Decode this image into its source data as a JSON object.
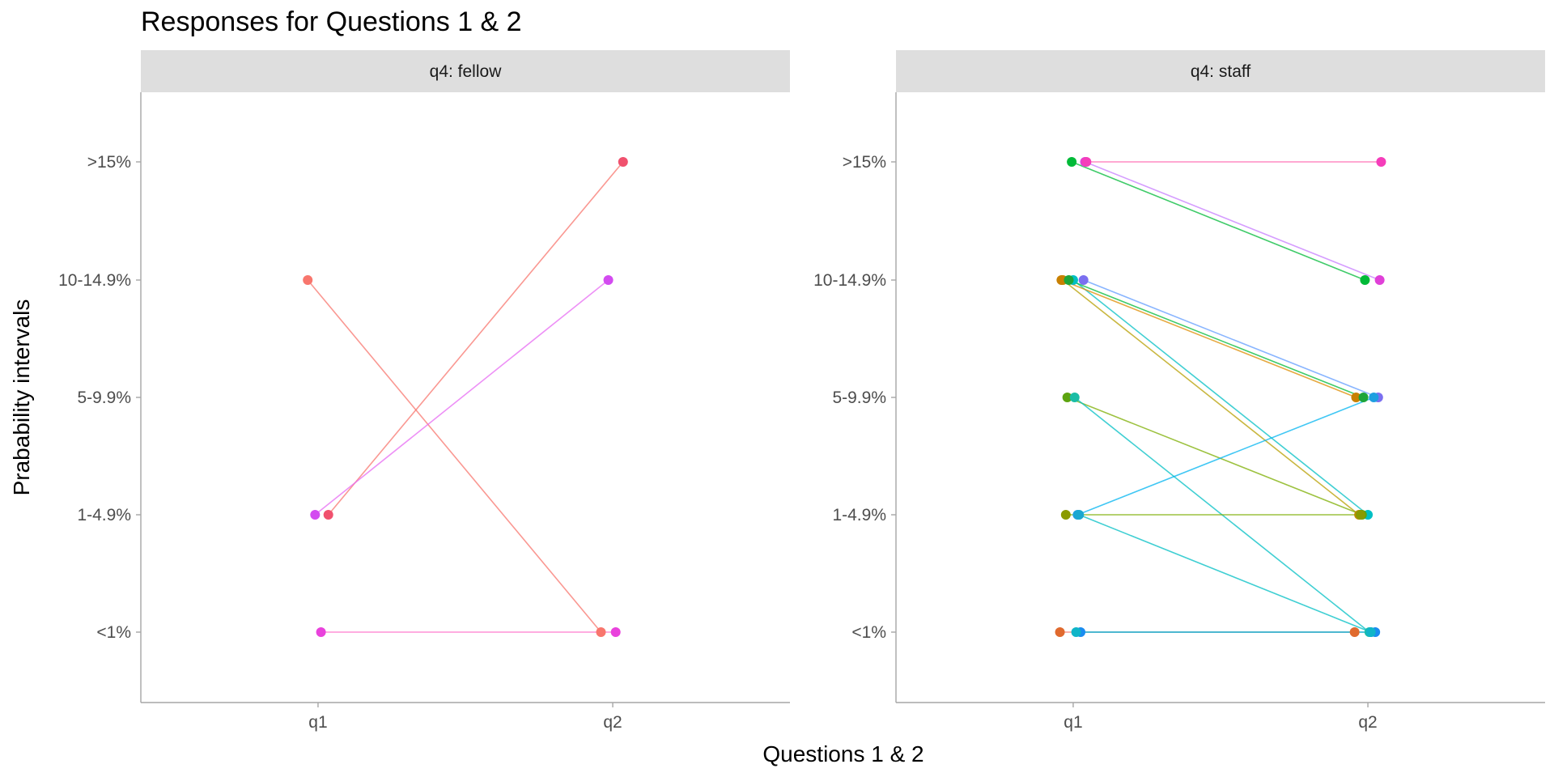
{
  "chart_data": {
    "type": "line",
    "title": "Responses for Questions 1 & 2",
    "xlabel": "Questions 1 & 2",
    "ylabel": "Prabability intervals",
    "x_categories": [
      "q1",
      "q2"
    ],
    "y_categories": [
      "<1%",
      "1-4.9%",
      "5-9.9%",
      "10-14.9%",
      ">15%"
    ],
    "grid": false,
    "legend": "none",
    "panels": [
      {
        "strip": "q4: fellow",
        "series": [
          {
            "color": "#F8766D",
            "values": [
              "10-14.9%",
              "<1%"
            ],
            "jitter": [
              -0.07,
              -0.08
            ]
          },
          {
            "color": "#F8766D",
            "values": [
              "1-4.9%",
              ">15%"
            ],
            "jitter": [
              0.07,
              0.07
            ],
            "point_color": "#F0516E"
          },
          {
            "color": "#E76BF3",
            "values": [
              "1-4.9%",
              "10-14.9%"
            ],
            "jitter": [
              -0.02,
              -0.03
            ],
            "point_color": "#D34BF0"
          },
          {
            "color": "#FF6BC8",
            "values": [
              "<1%",
              "<1%"
            ],
            "jitter": [
              0.02,
              0.02
            ],
            "point_color": "#E942DC"
          }
        ]
      },
      {
        "strip": "q4: staff",
        "series": [
          {
            "color": "#00BA38",
            "values": [
              ">15%",
              "10-14.9%"
            ],
            "jitter": [
              -0.01,
              -0.02
            ]
          },
          {
            "color": "#C77CFF",
            "values": [
              ">15%",
              "10-14.9%"
            ],
            "jitter": [
              0.08,
              0.08
            ],
            "point_color": "#E040D8"
          },
          {
            "color": "#FF64B0",
            "values": [
              ">15%",
              ">15%"
            ],
            "jitter": [
              0.09,
              0.09
            ],
            "point_color": "#F53DBA"
          },
          {
            "color": "#00BFC4",
            "values": [
              "10-14.9%",
              "1-4.9%"
            ],
            "jitter": [
              0.0,
              0.0
            ]
          },
          {
            "color": "#B79F00",
            "values": [
              "10-14.9%",
              "1-4.9%"
            ],
            "jitter": [
              -0.07,
              -0.06
            ],
            "point_color": "#C08A00"
          },
          {
            "color": "#DE8C00",
            "values": [
              "10-14.9%",
              "5-9.9%"
            ],
            "jitter": [
              -0.08,
              -0.08
            ],
            "point_color": "#C88000"
          },
          {
            "color": "#00BA38",
            "values": [
              "10-14.9%",
              "5-9.9%"
            ],
            "jitter": [
              -0.03,
              -0.03
            ],
            "point_color": "#1DA53A"
          },
          {
            "color": "#619CFF",
            "values": [
              "10-14.9%",
              "5-9.9%"
            ],
            "jitter": [
              0.07,
              0.07
            ],
            "point_color": "#7B6FF0"
          },
          {
            "color": "#7CAE00",
            "values": [
              "5-9.9%",
              "1-4.9%"
            ],
            "jitter": [
              -0.04,
              -0.04
            ],
            "point_color": "#5DA410"
          },
          {
            "color": "#00BFC4",
            "values": [
              "5-9.9%",
              "<1%"
            ],
            "jitter": [
              0.01,
              0.01
            ],
            "point_color": "#1ABDA5"
          },
          {
            "color": "#7CAE00",
            "values": [
              "1-4.9%",
              "1-4.9%"
            ],
            "jitter": [
              -0.05,
              -0.05
            ],
            "point_color": "#8A9A00"
          },
          {
            "color": "#00B4F0",
            "values": [
              "1-4.9%",
              "5-9.9%"
            ],
            "jitter": [
              0.03,
              0.04
            ],
            "point_color": "#1E9FE0"
          },
          {
            "color": "#00BFC4",
            "values": [
              "1-4.9%",
              "<1%"
            ],
            "jitter": [
              0.04,
              0.02
            ],
            "point_color": "#1AA8D0"
          },
          {
            "color": "#F8766D",
            "values": [
              "<1%",
              "<1%"
            ],
            "jitter": [
              -0.09,
              -0.09
            ],
            "point_color": "#E06A2E"
          },
          {
            "color": "#619CFF",
            "values": [
              "<1%",
              "<1%"
            ],
            "jitter": [
              0.05,
              0.05
            ],
            "point_color": "#1A8CF0"
          },
          {
            "color": "#00BFC4",
            "values": [
              "<1%",
              "<1%"
            ],
            "jitter": [
              0.02,
              0.02
            ],
            "point_color": "#10B5C8"
          }
        ]
      }
    ]
  }
}
